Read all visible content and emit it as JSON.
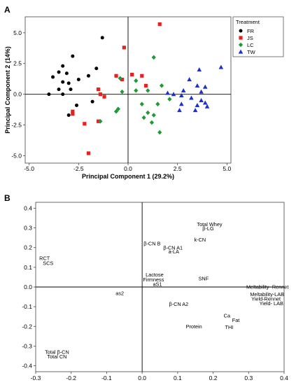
{
  "chart_data": [
    {
      "type": "scatter",
      "panel_label": "A",
      "xlabel": "Principal Component 1 (29.2%)",
      "ylabel": "Principal Component 2 (14%)",
      "xlim": [
        -5.2,
        5.2
      ],
      "ylim": [
        -5.6,
        6.3
      ],
      "x_ticks": [
        "-5.0",
        "-2.5",
        "0.0",
        "2.5",
        "5.0"
      ],
      "x_tick_values": [
        -5,
        -2.5,
        0,
        2.5,
        5
      ],
      "y_ticks": [
        "5.0",
        "2.5",
        "0.0",
        "-2.5",
        "-5.0"
      ],
      "y_tick_values": [
        5,
        2.5,
        0,
        -2.5,
        -5
      ],
      "legend_title": "Treatment",
      "legend_position": "top-right",
      "series": [
        {
          "name": "FR",
          "marker": "circle",
          "color": "#000000",
          "points": [
            [
              -1.3,
              4.6
            ],
            [
              -2.8,
              3.1
            ],
            [
              -3.3,
              2.3
            ],
            [
              -1.6,
              2.1
            ],
            [
              -3.5,
              1.8
            ],
            [
              -3.1,
              1.7
            ],
            [
              -2.0,
              1.5
            ],
            [
              -3.8,
              1.4
            ],
            [
              -2.5,
              1.2
            ],
            [
              -3.3,
              1.0
            ],
            [
              -3.0,
              0.9
            ],
            [
              -3.5,
              0.4
            ],
            [
              -2.9,
              0.4
            ],
            [
              -4.0,
              0.0
            ],
            [
              -3.3,
              0.0
            ],
            [
              -1.8,
              -0.6
            ],
            [
              -2.6,
              -0.9
            ],
            [
              -3.0,
              -1.7
            ]
          ]
        },
        {
          "name": "JS",
          "marker": "square",
          "color": "#e8201e",
          "points": [
            [
              1.6,
              5.7
            ],
            [
              -0.2,
              3.8
            ],
            [
              0.2,
              1.6
            ],
            [
              -0.6,
              1.5
            ],
            [
              0.7,
              1.5
            ],
            [
              -0.3,
              1.2
            ],
            [
              0.9,
              0.7
            ],
            [
              -1.5,
              0.4
            ],
            [
              -1.4,
              0.0
            ],
            [
              -1.2,
              -0.2
            ],
            [
              -2.8,
              -1.4
            ],
            [
              -2.8,
              -1.6
            ],
            [
              -1.5,
              -2.2
            ],
            [
              -2.2,
              -2.4
            ],
            [
              -2.0,
              -4.8
            ]
          ]
        },
        {
          "name": "LC",
          "marker": "diamond",
          "color": "#1f9a36",
          "points": [
            [
              1.3,
              3.0
            ],
            [
              0.4,
              1.1
            ],
            [
              1.7,
              0.7
            ],
            [
              0.4,
              0.3
            ],
            [
              -0.4,
              1.3
            ],
            [
              1.0,
              0.3
            ],
            [
              -0.3,
              0.2
            ],
            [
              2.1,
              -0.4
            ],
            [
              0.7,
              -0.8
            ],
            [
              1.5,
              -0.8
            ],
            [
              -0.5,
              -1.2
            ],
            [
              -0.6,
              -1.4
            ],
            [
              1.0,
              -1.5
            ],
            [
              1.3,
              -1.7
            ],
            [
              0.8,
              -1.9
            ],
            [
              1.2,
              -2.3
            ],
            [
              -1.4,
              -2.2
            ],
            [
              1.6,
              -3.1
            ]
          ]
        },
        {
          "name": "TW",
          "marker": "triangle",
          "color": "#1c2fd0",
          "points": [
            [
              3.6,
              2.0
            ],
            [
              4.7,
              2.2
            ],
            [
              3.1,
              1.2
            ],
            [
              3.5,
              0.7
            ],
            [
              3.9,
              0.6
            ],
            [
              2.8,
              0.3
            ],
            [
              3.7,
              0.2
            ],
            [
              2.0,
              0.1
            ],
            [
              2.3,
              0.0
            ],
            [
              2.7,
              -0.1
            ],
            [
              3.2,
              -0.3
            ],
            [
              3.7,
              -0.5
            ],
            [
              3.9,
              -0.7
            ],
            [
              2.7,
              -0.8
            ],
            [
              3.5,
              -0.9
            ],
            [
              2.6,
              -1.3
            ],
            [
              3.4,
              -1.3
            ],
            [
              4.0,
              -1.0
            ]
          ]
        }
      ]
    },
    {
      "type": "scatter",
      "panel_label": "B",
      "xlim": [
        -0.3,
        0.4
      ],
      "ylim": [
        -0.43,
        0.43
      ],
      "x_ticks": [
        "-0.3",
        "-0.2",
        "-0.1",
        "0.0",
        "0.1",
        "0.2",
        "0.3",
        "0.4"
      ],
      "x_tick_values": [
        -0.3,
        -0.2,
        -0.1,
        0.0,
        0.1,
        0.2,
        0.3,
        0.4
      ],
      "y_ticks": [
        "0.4",
        "0.3",
        "0.2",
        "0.1",
        "0.0",
        "-0.1",
        "-0.2",
        "-0.3",
        "-0.4"
      ],
      "y_tick_values": [
        0.4,
        0.3,
        0.2,
        0.1,
        0.0,
        -0.1,
        -0.2,
        -0.3,
        -0.4
      ],
      "labels": [
        {
          "text": "Total Whey",
          "x": 0.19,
          "y": 0.318
        },
        {
          "text": "β-LG",
          "x": 0.186,
          "y": 0.296
        },
        {
          "text": "k-CN",
          "x": 0.163,
          "y": 0.239
        },
        {
          "text": "β-CN B",
          "x": 0.028,
          "y": 0.221
        },
        {
          "text": "β-CN A1",
          "x": 0.087,
          "y": 0.199
        },
        {
          "text": "a-LA",
          "x": 0.089,
          "y": 0.18
        },
        {
          "text": "RCT",
          "x": -0.275,
          "y": 0.145
        },
        {
          "text": "SCS",
          "x": -0.265,
          "y": 0.12
        },
        {
          "text": "Lactose",
          "x": 0.035,
          "y": 0.062
        },
        {
          "text": "SNF",
          "x": 0.173,
          "y": 0.043
        },
        {
          "text": "Firmness",
          "x": 0.032,
          "y": 0.038
        },
        {
          "text": "aS1",
          "x": 0.043,
          "y": 0.015
        },
        {
          "text": "Meltability- Rennet",
          "x": 0.353,
          "y": 0.0
        },
        {
          "text": "as2",
          "x": -0.063,
          "y": -0.032
        },
        {
          "text": "Meltability-LAB",
          "x": 0.352,
          "y": -0.038
        },
        {
          "text": "Yield-Rennet",
          "x": 0.349,
          "y": -0.06
        },
        {
          "text": "β-CN A2",
          "x": 0.103,
          "y": -0.087
        },
        {
          "text": "Yield- LAB",
          "x": 0.364,
          "y": -0.083
        },
        {
          "text": "Ca",
          "x": 0.239,
          "y": -0.146
        },
        {
          "text": "Fat",
          "x": 0.264,
          "y": -0.168
        },
        {
          "text": "Protein",
          "x": 0.146,
          "y": -0.2
        },
        {
          "text": "THI",
          "x": 0.245,
          "y": -0.204
        },
        {
          "text": "Total β-CN",
          "x": -0.24,
          "y": -0.33
        },
        {
          "text": "Total CN",
          "x": -0.24,
          "y": -0.353
        }
      ]
    }
  ]
}
